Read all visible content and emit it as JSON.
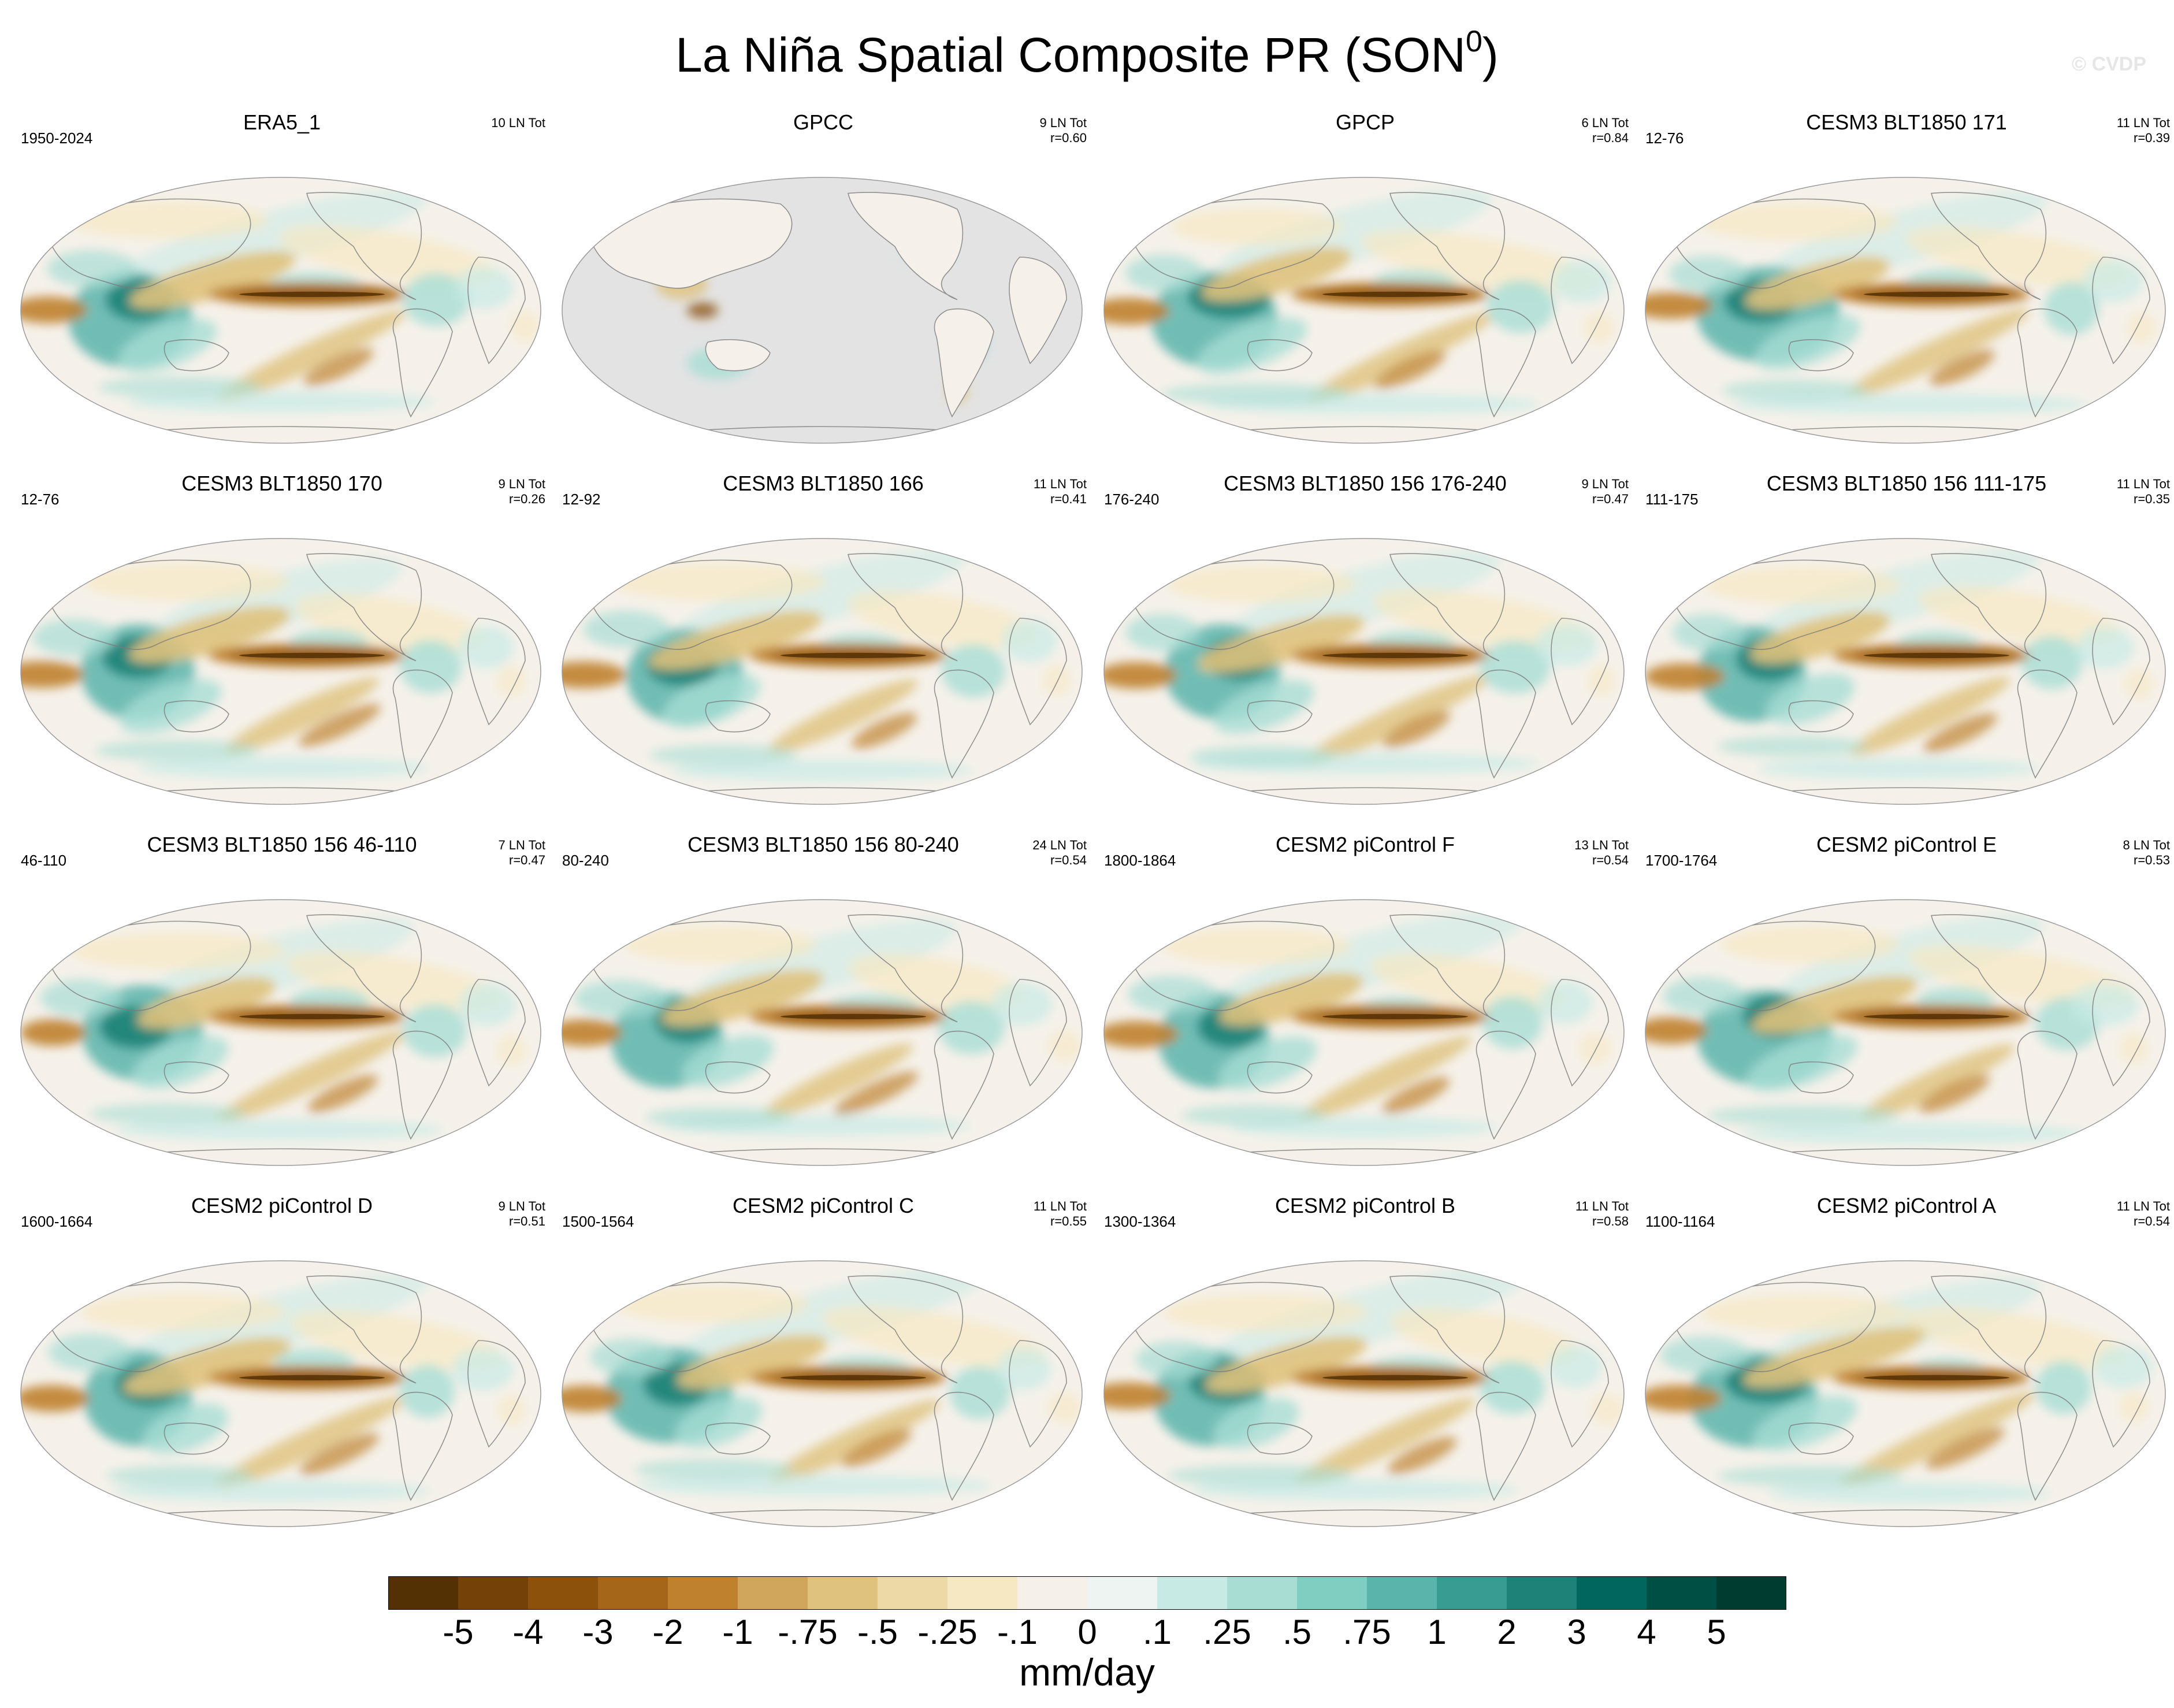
{
  "title": {
    "text": "La Niña Spatial Composite PR (SON",
    "superscript": "0",
    "suffix": ")"
  },
  "watermark": "© CVDP",
  "panels": [
    {
      "title": "ERA5_1",
      "left_label": "1950-2024",
      "count": "10 LN Tot",
      "corr": "",
      "land_mask": false
    },
    {
      "title": "GPCC",
      "left_label": "",
      "count": "9 LN Tot",
      "corr": "r=0.60",
      "land_mask": true
    },
    {
      "title": "GPCP",
      "left_label": "",
      "count": "6 LN Tot",
      "corr": "r=0.84",
      "land_mask": false
    },
    {
      "title": "CESM3 BLT1850 171",
      "left_label": "12-76",
      "count": "11 LN Tot",
      "corr": "r=0.39",
      "land_mask": false
    },
    {
      "title": "CESM3 BLT1850 170",
      "left_label": "12-76",
      "count": "9 LN Tot",
      "corr": "r=0.26",
      "land_mask": false
    },
    {
      "title": "CESM3 BLT1850 166",
      "left_label": "12-92",
      "count": "11 LN Tot",
      "corr": "r=0.41",
      "land_mask": false
    },
    {
      "title": "CESM3 BLT1850 156 176-240",
      "left_label": "176-240",
      "count": "9 LN Tot",
      "corr": "r=0.47",
      "land_mask": false
    },
    {
      "title": "CESM3 BLT1850 156 111-175",
      "left_label": "111-175",
      "count": "11 LN Tot",
      "corr": "r=0.35",
      "land_mask": false
    },
    {
      "title": "CESM3 BLT1850 156 46-110",
      "left_label": "46-110",
      "count": "7 LN Tot",
      "corr": "r=0.47",
      "land_mask": false
    },
    {
      "title": "CESM3 BLT1850 156 80-240",
      "left_label": "80-240",
      "count": "24 LN Tot",
      "corr": "r=0.54",
      "land_mask": false
    },
    {
      "title": "CESM2 piControl F",
      "left_label": "1800-1864",
      "count": "13 LN Tot",
      "corr": "r=0.54",
      "land_mask": false
    },
    {
      "title": "CESM2 piControl E",
      "left_label": "1700-1764",
      "count": "8 LN Tot",
      "corr": "r=0.53",
      "land_mask": false
    },
    {
      "title": "CESM2 piControl D",
      "left_label": "1600-1664",
      "count": "9 LN Tot",
      "corr": "r=0.51",
      "land_mask": false
    },
    {
      "title": "CESM2 piControl C",
      "left_label": "1500-1564",
      "count": "11 LN Tot",
      "corr": "r=0.55",
      "land_mask": false
    },
    {
      "title": "CESM2 piControl B",
      "left_label": "1300-1364",
      "count": "11 LN Tot",
      "corr": "r=0.58",
      "land_mask": false
    },
    {
      "title": "CESM2 piControl A",
      "left_label": "1100-1164",
      "count": "11 LN Tot",
      "corr": "r=0.54",
      "land_mask": false
    }
  ],
  "colorbar": {
    "units": "mm/day",
    "tick_labels": [
      "-5",
      "-4",
      "-3",
      "-2",
      "-1",
      "-.75",
      "-.5",
      "-.25",
      "-.1",
      "0",
      ".1",
      ".25",
      ".5",
      ".75",
      "1",
      "2",
      "3",
      "4",
      "5"
    ],
    "colors": [
      "#543005",
      "#744108",
      "#8c510a",
      "#a5661a",
      "#bf812d",
      "#d0a55c",
      "#dfc27d",
      "#ecd9a6",
      "#f6e8c3",
      "#f5f1ea",
      "#eef4f2",
      "#c7eae5",
      "#a8ddd4",
      "#80cdc1",
      "#5ab4ac",
      "#389c92",
      "#1f8278",
      "#01665e",
      "#004f45",
      "#003c30"
    ]
  },
  "colors": {
    "land_mask": "#e3e3e3",
    "neutral": "#f5f1ea",
    "coast": "#7a7a7a"
  }
}
